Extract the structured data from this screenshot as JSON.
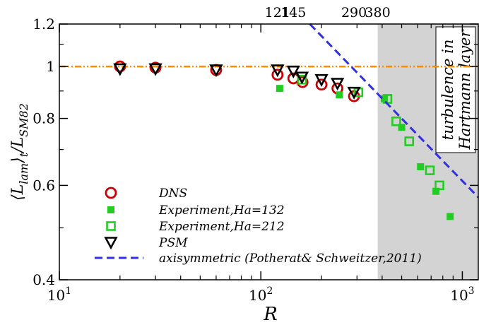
{
  "chart_data": {
    "type": "scatter",
    "x_scale": "log",
    "y_scale": "log",
    "xlim": [
      10,
      1200
    ],
    "ylim": [
      0.4,
      1.2
    ],
    "xlabel": "R",
    "ylabel": {
      "main": "⟨L",
      "sub1": "lam",
      "mid": "⟩",
      "sub2": "t",
      "tail": "/L",
      "sub3": "SM82"
    },
    "x_ticks": [
      {
        "value": 10,
        "base": "10",
        "exp": "1"
      },
      {
        "value": 100,
        "base": "10",
        "exp": "2"
      },
      {
        "value": 1000,
        "base": "10",
        "exp": "3"
      }
    ],
    "y_ticks": [
      {
        "value": 0.4,
        "label": "0.4"
      },
      {
        "value": 0.6,
        "label": "0.6"
      },
      {
        "value": 0.8,
        "label": "0.8"
      },
      {
        "value": 1.0,
        "label": "1"
      },
      {
        "value": 1.2,
        "label": "1.2"
      }
    ],
    "top_ticks": [
      {
        "value": 121,
        "label": "121"
      },
      {
        "value": 145,
        "label": "145"
      },
      {
        "value": 290,
        "label": "290"
      },
      {
        "value": 380,
        "label": "380"
      }
    ],
    "shaded_region": {
      "x_from": 380,
      "x_to": 1200,
      "color": "#d3d3d3",
      "text": [
        "turbulence in",
        "Hartmann layer"
      ]
    },
    "reference_line": {
      "y": 1.0,
      "color": "#ff8c00"
    },
    "series": [
      {
        "name": "DNS",
        "marker": "circle-open",
        "color": "#cc0000",
        "points": [
          [
            20,
            1.0
          ],
          [
            30,
            0.995
          ],
          [
            60,
            0.985
          ],
          [
            121,
            0.965
          ],
          [
            145,
            0.95
          ],
          [
            161,
            0.935
          ],
          [
            200,
            0.925
          ],
          [
            240,
            0.91
          ],
          [
            290,
            0.88
          ]
        ]
      },
      {
        "name": "Experiment,Ha=132",
        "marker": "square-filled",
        "color": "#22cc22",
        "points": [
          [
            124,
            0.91
          ],
          [
            245,
            0.885
          ],
          [
            410,
            0.87
          ],
          [
            500,
            0.77
          ],
          [
            620,
            0.65
          ],
          [
            740,
            0.585
          ],
          [
            870,
            0.525
          ]
        ]
      },
      {
        "name": "Experiment,Ha=212",
        "marker": "square-open",
        "color": "#22cc22",
        "points": [
          [
            160,
            0.945
          ],
          [
            305,
            0.895
          ],
          [
            425,
            0.87
          ],
          [
            470,
            0.79
          ],
          [
            545,
            0.725
          ],
          [
            690,
            0.64
          ],
          [
            770,
            0.6
          ]
        ]
      },
      {
        "name": "PSM",
        "marker": "triangle-down-open",
        "color": "#000000",
        "points": [
          [
            20,
            0.99
          ],
          [
            30,
            0.99
          ],
          [
            60,
            0.985
          ],
          [
            121,
            0.985
          ],
          [
            145,
            0.98
          ],
          [
            160,
            0.955
          ],
          [
            200,
            0.945
          ],
          [
            240,
            0.93
          ],
          [
            290,
            0.895
          ]
        ]
      },
      {
        "name": "axisymmetric (Potherat& Schweitzer,2011)",
        "marker": "dashed-line",
        "color": "#3030e0",
        "points": [
          [
            175,
            1.2
          ],
          [
            1200,
            0.57
          ]
        ]
      }
    ]
  }
}
